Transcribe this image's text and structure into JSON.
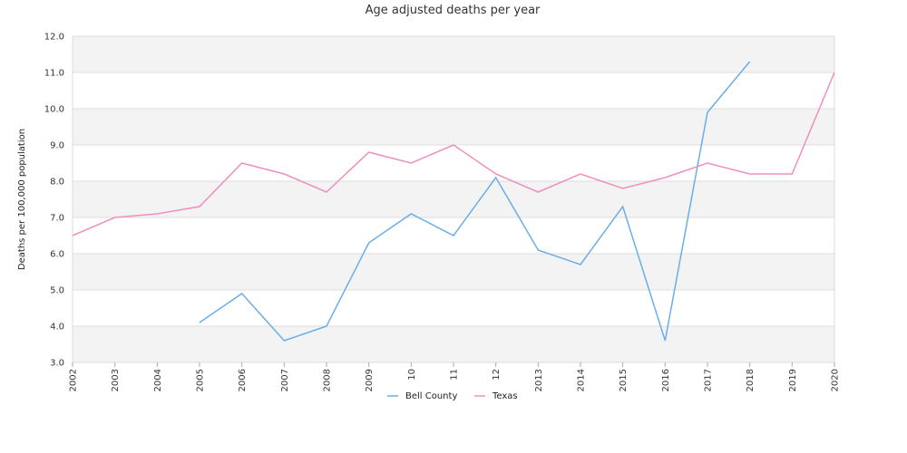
{
  "chart_data": {
    "type": "line",
    "title": "Age adjusted deaths per year",
    "xlabel": "",
    "ylabel": "Deaths per 100,000 population",
    "ylim": [
      3.0,
      12.0
    ],
    "yticks": [
      "3.0",
      "4.0",
      "5.0",
      "6.0",
      "7.0",
      "8.0",
      "9.0",
      "10.0",
      "11.0",
      "12.0"
    ],
    "categories": [
      "2002",
      "2003",
      "2004",
      "2005",
      "2006",
      "2007",
      "2008",
      "2009",
      "10",
      "11",
      "12",
      "2013",
      "2014",
      "2015",
      "2016",
      "2017",
      "2018",
      "2019",
      "2020"
    ],
    "series": [
      {
        "name": "Bell County",
        "color": "#6aaee8",
        "values": [
          null,
          null,
          null,
          4.1,
          4.9,
          3.6,
          4.0,
          6.3,
          7.1,
          6.5,
          8.1,
          6.1,
          5.7,
          7.3,
          3.6,
          9.9,
          11.3,
          null,
          null
        ]
      },
      {
        "name": "Texas",
        "color": "#ef8fbd",
        "values": [
          6.5,
          7.0,
          7.1,
          7.3,
          8.5,
          8.2,
          7.7,
          8.8,
          8.5,
          9.0,
          8.2,
          7.7,
          8.2,
          7.8,
          8.1,
          8.5,
          8.2,
          8.2,
          11.0
        ]
      }
    ],
    "grid": true,
    "legend": "bottom-center"
  }
}
